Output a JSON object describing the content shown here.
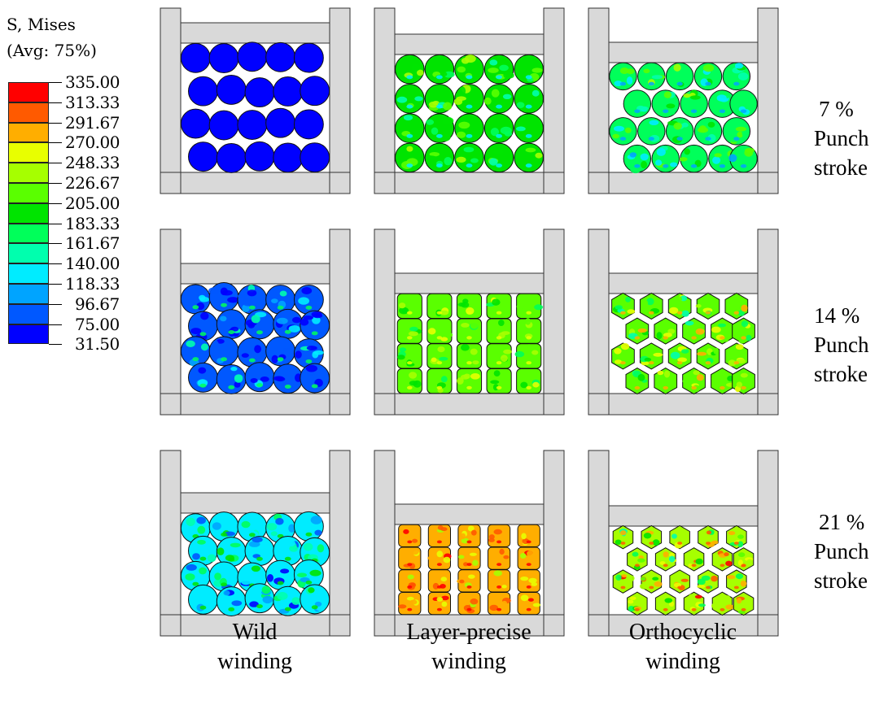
{
  "legend": {
    "title_line1": "S, Mises",
    "title_line2": "(Avg: 75%)",
    "levels": [
      "335.00",
      "313.33",
      "291.67",
      "270.00",
      "248.33",
      "226.67",
      "205.00",
      "183.33",
      "161.67",
      "140.00",
      "118.33",
      "96.67",
      "75.00",
      "31.50"
    ],
    "colors": [
      "#ff0000",
      "#ff5a00",
      "#ffae00",
      "#e8ff00",
      "#a6ff00",
      "#5aff00",
      "#00e400",
      "#00ff5a",
      "#00ffae",
      "#00ecff",
      "#00a4ff",
      "#0058ff",
      "#0000ff"
    ]
  },
  "rows": [
    {
      "line1": "7 %",
      "line2": "Punch",
      "line3": "stroke"
    },
    {
      "line1": "14 %",
      "line2": "Punch",
      "line3": "stroke"
    },
    {
      "line1": "21 %",
      "line2": "Punch",
      "line3": "stroke"
    }
  ],
  "columns": [
    {
      "line1": "Wild",
      "line2": "winding"
    },
    {
      "line1": "Layer-precise",
      "line2": "winding"
    },
    {
      "line1": "Orthocyclic",
      "line2": "winding"
    }
  ],
  "colors": {
    "frame_fill": "#d9d9d9",
    "frame_stroke": "#333333",
    "low_stress": "#1a1aee",
    "mid_stress": "#2ad850",
    "high_stress": "#ff6a00"
  }
}
